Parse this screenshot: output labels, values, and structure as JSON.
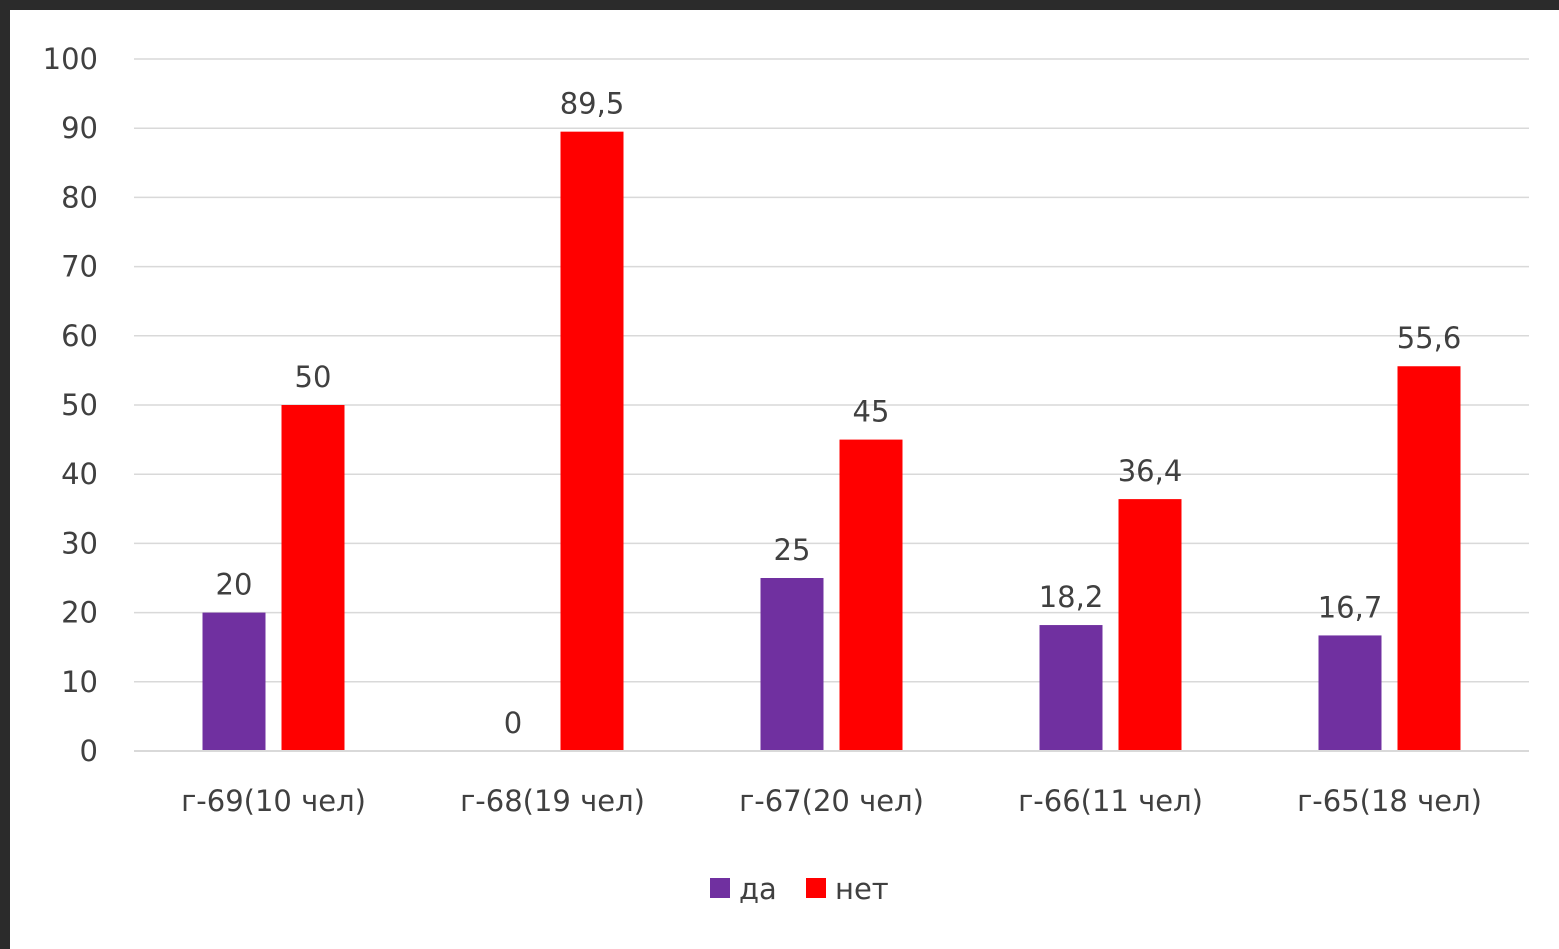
{
  "chart_data": {
    "type": "bar",
    "categories": [
      "г-69(10 чел)",
      "г-68(19 чел)",
      "г-67(20 чел)",
      "г-66(11 чел)",
      "г-65(18 чел)"
    ],
    "series": [
      {
        "name": "да",
        "color": "#7030a0",
        "values": [
          20,
          0,
          25,
          18.2,
          16.7
        ],
        "labels": [
          "20",
          "0",
          "25",
          "18,2",
          "16,7"
        ]
      },
      {
        "name": "нет",
        "color": "#ff0000",
        "values": [
          50,
          89.5,
          45,
          36.4,
          55.6
        ],
        "labels": [
          "50",
          "89,5",
          "45",
          "36,4",
          "55,6"
        ]
      }
    ],
    "ylim": [
      0,
      100
    ],
    "yticks": [
      "0",
      "10",
      "20",
      "30",
      "40",
      "50",
      "60",
      "70",
      "80",
      "90",
      "100"
    ],
    "grid": true,
    "legend_position": "bottom"
  }
}
